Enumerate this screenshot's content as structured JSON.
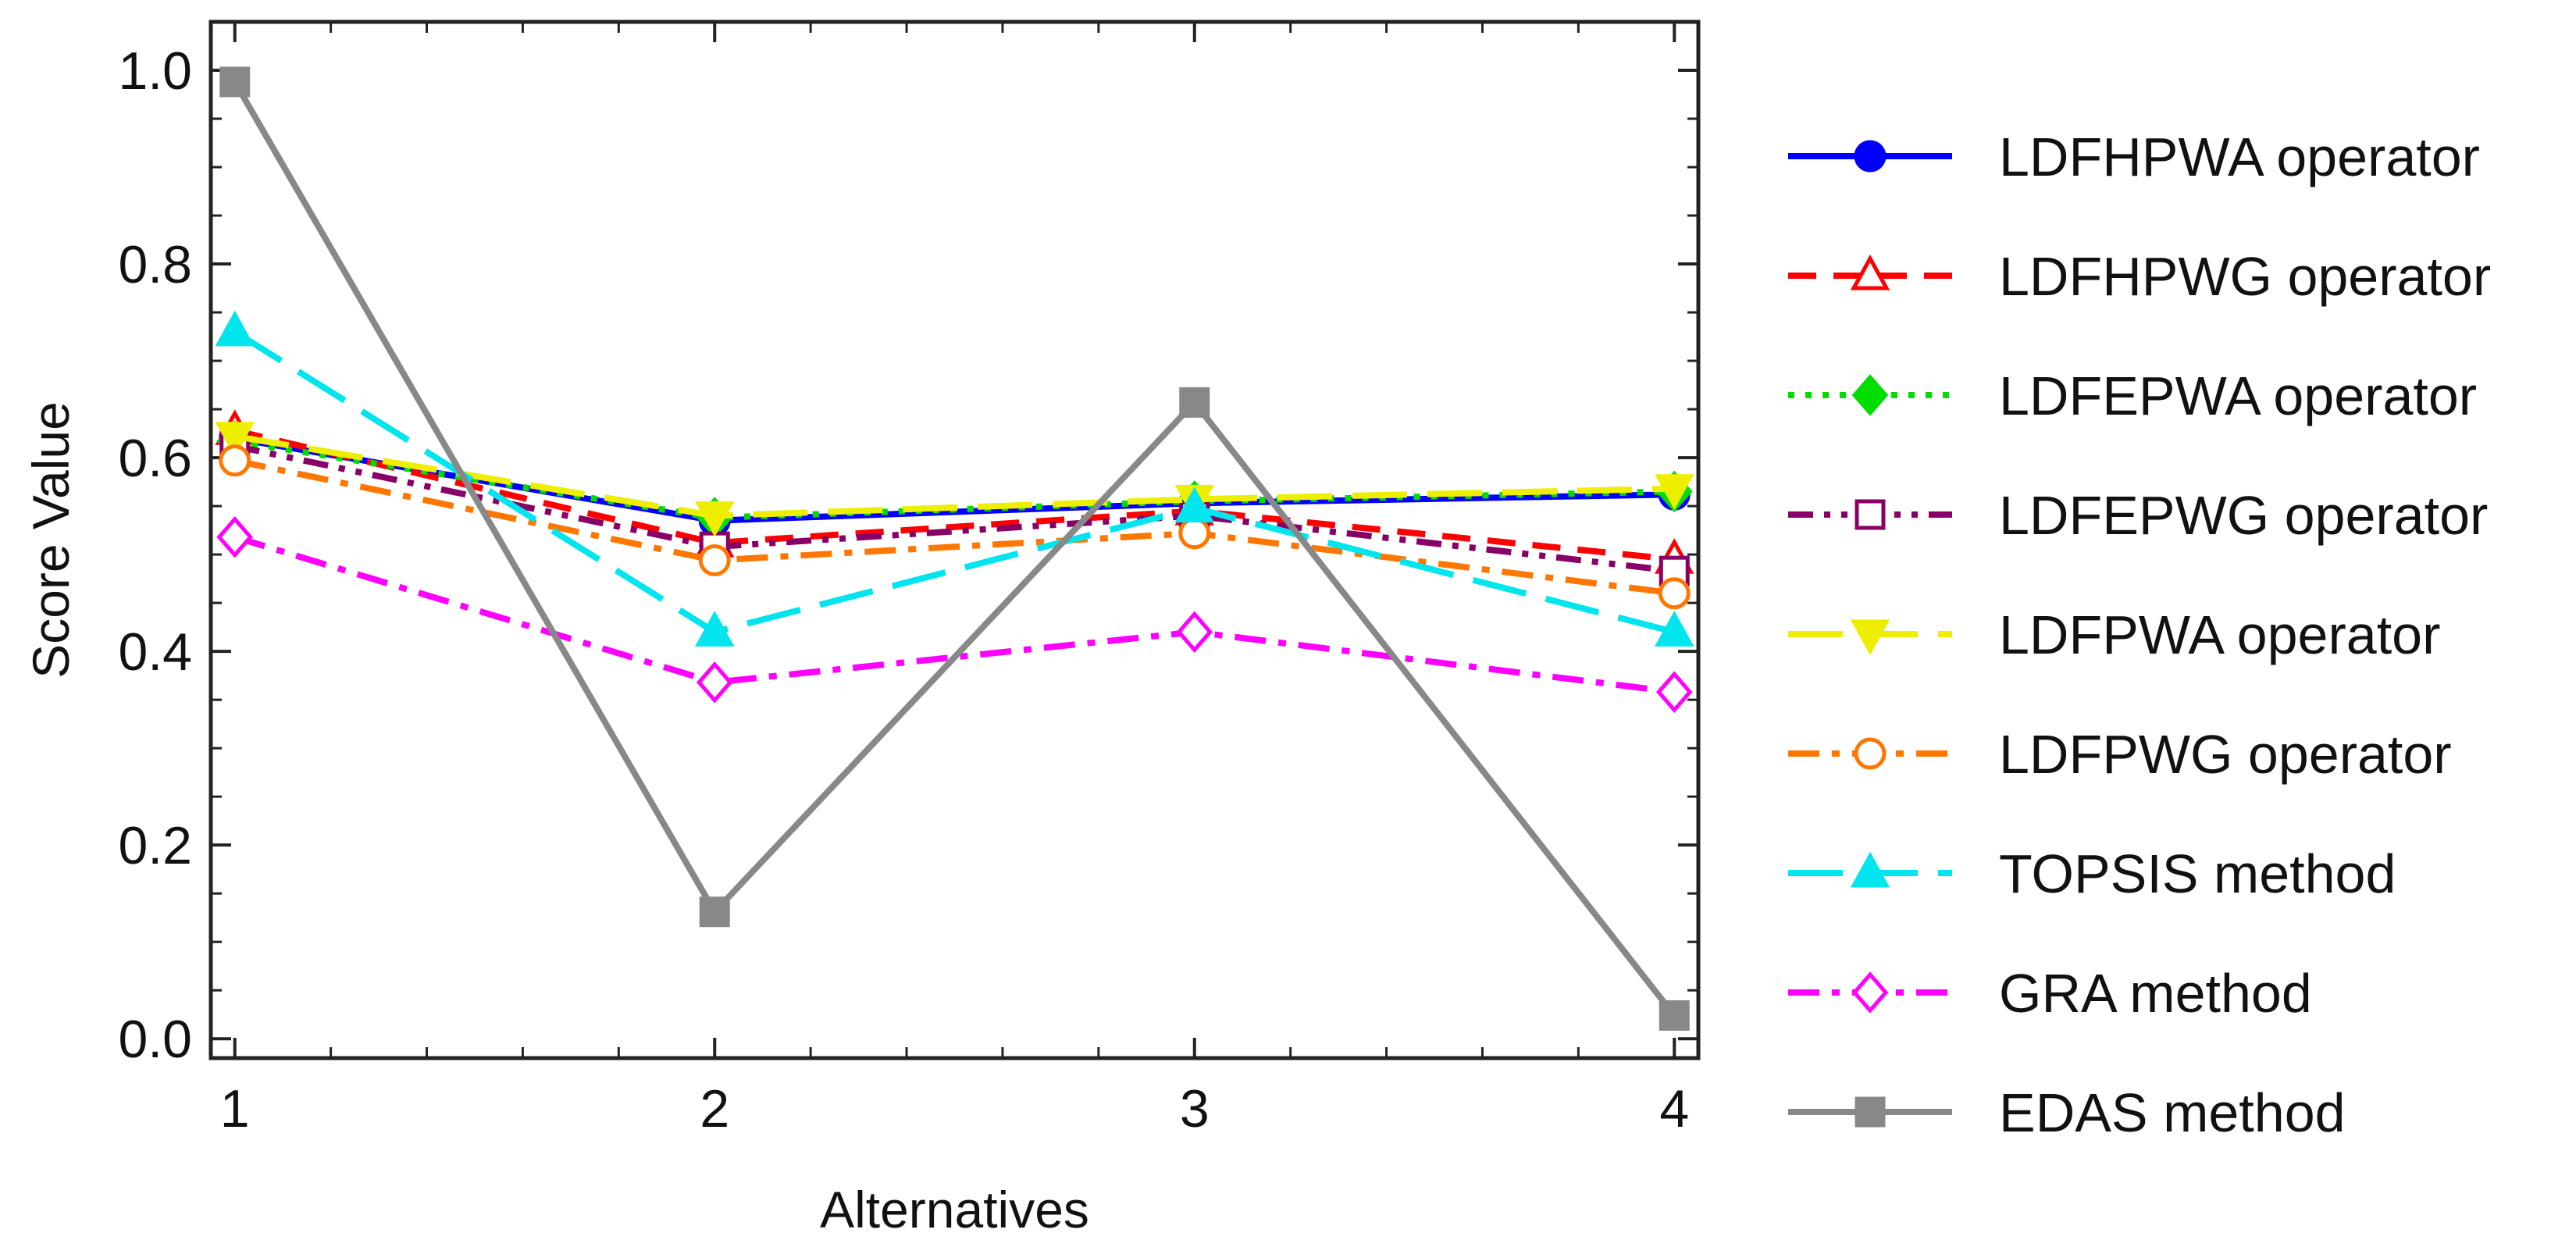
{
  "chart_data": {
    "type": "line",
    "title": "",
    "xlabel": "Alternatives",
    "ylabel": "Score Value",
    "x": [
      1,
      2,
      3,
      4
    ],
    "xticks": [
      "1",
      "2",
      "3",
      "4"
    ],
    "yticks": [
      "0.0",
      "0.2",
      "0.4",
      "0.6",
      "0.8",
      "1.0"
    ],
    "ylim": [
      -0.02,
      1.05
    ],
    "xlim": [
      0.95,
      4.05
    ],
    "legend_position": "right",
    "series": [
      {
        "name": "LDFHPWA operator",
        "values": [
          0.62,
          0.535,
          0.553,
          0.562
        ],
        "color": "#0000ff",
        "dash": "solid",
        "marker": "circle",
        "filled": true
      },
      {
        "name": "LDFHPWG operator",
        "values": [
          0.628,
          0.512,
          0.545,
          0.495
        ],
        "color": "#ff0000",
        "dash": "dashed",
        "marker": "triangle-up",
        "filled": false
      },
      {
        "name": "LDFEPWA operator",
        "values": [
          0.617,
          0.538,
          0.555,
          0.565
        ],
        "color": "#00dd00",
        "dash": "dotted",
        "marker": "diamond",
        "filled": true
      },
      {
        "name": "LDFEPWG operator",
        "values": [
          0.612,
          0.508,
          0.54,
          0.483
        ],
        "color": "#880066",
        "dash": "dashdotdot",
        "marker": "square",
        "filled": false
      },
      {
        "name": "LDFPWA operator",
        "values": [
          0.622,
          0.54,
          0.557,
          0.568
        ],
        "color": "#eeee00",
        "dash": "longdash",
        "marker": "triangle-down",
        "filled": true
      },
      {
        "name": "LDFPWG operator",
        "values": [
          0.597,
          0.494,
          0.522,
          0.46
        ],
        "color": "#ff7700",
        "dash": "dashdot",
        "marker": "circle",
        "filled": false
      },
      {
        "name": "TOPSIS method",
        "values": [
          0.73,
          0.42,
          0.548,
          0.42
        ],
        "color": "#00e5ee",
        "dash": "longdash",
        "marker": "triangle-up",
        "filled": true
      },
      {
        "name": "GRA method",
        "values": [
          0.518,
          0.368,
          0.42,
          0.358
        ],
        "color": "#ff00ff",
        "dash": "dashdot",
        "marker": "diamond",
        "filled": false
      },
      {
        "name": "EDAS method",
        "values": [
          0.988,
          0.131,
          0.657,
          0.024
        ],
        "color": "#888888",
        "dash": "solid",
        "marker": "square",
        "filled": true
      }
    ]
  }
}
